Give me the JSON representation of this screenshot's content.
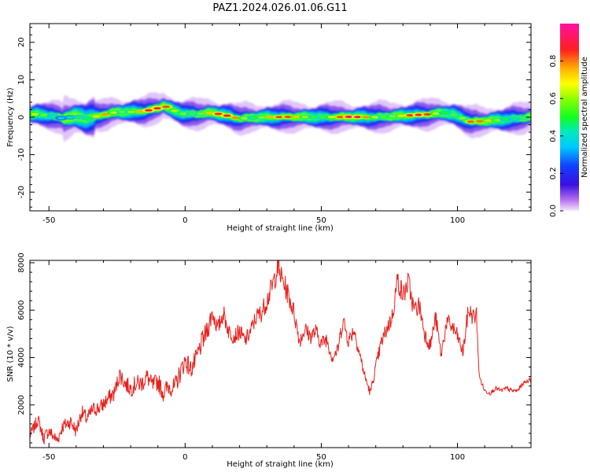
{
  "title": "PAZ1.2024.026.01.06.G11",
  "colors": {
    "snr_line": "#e8211d",
    "axis": "#000000",
    "background": "#ffffff"
  },
  "chart_data": [
    {
      "type": "heatmap",
      "xlabel": "Height of straight line (km)",
      "ylabel": "Frequency (Hz)",
      "xlim": [
        -57,
        127
      ],
      "ylim": [
        -25,
        25
      ],
      "x_ticks": [
        "-50",
        "0",
        "50",
        "100"
      ],
      "x_tick_values": [
        -50,
        0,
        50,
        100
      ],
      "y_ticks": [
        "20",
        "10",
        "0",
        "-10",
        "-20"
      ],
      "y_tick_values": [
        20,
        10,
        0,
        -10,
        -20
      ],
      "colorbar": {
        "label": "Normalized spectral amplitude",
        "range": [
          0,
          1
        ],
        "ticks": [
          "0.0",
          "0.2",
          "0.4",
          "0.6",
          "0.8"
        ],
        "tick_values": [
          0,
          0.2,
          0.4,
          0.6,
          0.8
        ],
        "colormap": "gist_ncar-like (violet-blue-cyan-green-yellow-red-magenta)"
      },
      "ridge": {
        "x": [
          -55,
          -50,
          -45,
          -40,
          -36,
          -30,
          -25,
          -20,
          -15,
          -10,
          -8,
          -5,
          0,
          5,
          10,
          15,
          20,
          25,
          30,
          40,
          50,
          60,
          70,
          80,
          90,
          95,
          98,
          102,
          105,
          110,
          120,
          127
        ],
        "freq": [
          0.8,
          0.5,
          -0.3,
          0.2,
          -0.4,
          0.7,
          1.4,
          1.4,
          1.6,
          2.4,
          3.2,
          2.0,
          0.8,
          0.9,
          1.2,
          0.5,
          -0.4,
          -0.1,
          0.0,
          0.1,
          0.0,
          0.1,
          0.0,
          0.4,
          0.8,
          1.2,
          0.8,
          -0.3,
          -1.2,
          -1.0,
          -0.5,
          0.1
        ],
        "peak_amplitude": [
          0.7,
          0.75,
          0.6,
          0.55,
          0.5,
          0.9,
          0.95,
          0.95,
          0.95,
          0.9,
          0.95,
          0.8,
          0.95,
          0.8,
          0.85,
          0.9,
          0.95,
          0.85,
          0.95,
          0.8,
          0.85,
          0.95,
          0.95,
          0.85,
          0.95,
          0.8,
          0.9,
          0.8,
          0.9,
          0.75,
          0.75,
          0.8
        ]
      },
      "grid": false
    },
    {
      "type": "line",
      "xlabel": "Height of straight line (km)",
      "ylabel": "SNR (10 * v/v)",
      "xlim": [
        -57,
        127
      ],
      "ylim": [
        200,
        8100
      ],
      "x_ticks": [
        "-50",
        "0",
        "50",
        "100"
      ],
      "x_tick_values": [
        -50,
        0,
        50,
        100
      ],
      "y_ticks": [
        "8000",
        "6000",
        "4000",
        "2000"
      ],
      "y_tick_values": [
        8000,
        6000,
        4000,
        2000
      ],
      "series": [
        {
          "x": [
            -57,
            -54,
            -52,
            -50,
            -47,
            -45,
            -42,
            -40,
            -38,
            -36,
            -34,
            -31,
            -28,
            -26,
            -24,
            -22,
            -20,
            -18,
            -16,
            -14,
            -12,
            -10,
            -8,
            -6,
            -4,
            -2,
            0,
            2,
            4,
            6,
            8,
            10,
            12,
            14,
            16,
            18,
            20,
            22,
            24,
            26,
            28,
            30,
            32,
            34,
            36,
            38,
            40,
            42,
            44,
            46,
            48,
            50,
            52,
            54,
            56,
            58,
            60,
            62,
            64,
            66,
            68,
            70,
            72,
            74,
            76,
            78,
            80,
            82,
            84,
            86,
            88,
            90,
            92,
            94,
            96,
            98,
            100,
            102,
            104,
            106,
            107,
            108,
            110,
            112,
            114,
            116,
            118,
            120,
            122,
            124,
            127
          ],
          "y": [
            700,
            1400,
            600,
            900,
            500,
            1100,
            1300,
            900,
            1700,
            1400,
            1800,
            1900,
            2300,
            2500,
            3300,
            2900,
            2700,
            2900,
            2900,
            3200,
            2800,
            3000,
            2500,
            2800,
            2700,
            3300,
            3900,
            3500,
            3900,
            4600,
            5100,
            5900,
            5200,
            5900,
            5100,
            4900,
            5100,
            4700,
            5100,
            5700,
            5900,
            6400,
            7000,
            7800,
            7200,
            6600,
            5900,
            4700,
            5200,
            4900,
            5100,
            4600,
            4800,
            4000,
            4300,
            5600,
            4700,
            5200,
            4200,
            3200,
            2500,
            3600,
            4600,
            5200,
            5700,
            7300,
            6600,
            7200,
            6000,
            6200,
            5000,
            4500,
            5700,
            4100,
            5500,
            5300,
            4900,
            4200,
            6000,
            5700,
            5800,
            3200,
            2600,
            2500,
            2700,
            2600,
            2700,
            2600,
            2600,
            2900,
            3100
          ]
        }
      ],
      "grid": false
    }
  ]
}
